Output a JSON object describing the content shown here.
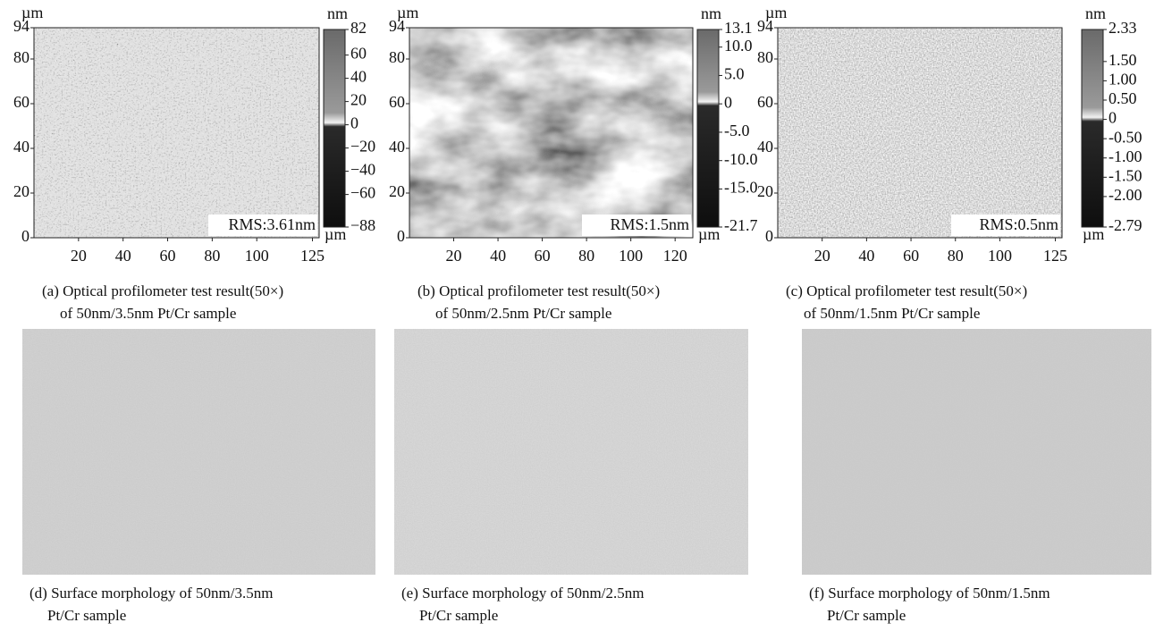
{
  "panels": [
    {
      "y_unit": "µm",
      "yticks": [
        0,
        20,
        40,
        60,
        80,
        94
      ],
      "xticks": [
        20,
        40,
        60,
        80,
        100,
        125
      ],
      "colorbar_unit": "nm",
      "colorbar_bottom_unit": "µm",
      "colorbar_ticks": [
        82,
        60,
        40,
        20,
        0,
        {
          "value": -20,
          "label": "−20"
        },
        {
          "value": -40,
          "label": "−40"
        },
        {
          "value": -60,
          "label": "−60"
        },
        {
          "value": -88,
          "label": "−88"
        }
      ],
      "rms": "RMS:3.61nm",
      "caption": [
        "(a) Optical profilometer test result(50×)",
        "of 50nm/3.5nm Pt/Cr sample"
      ]
    },
    {
      "y_unit": "µm",
      "yticks": [
        0,
        20,
        40,
        60,
        80,
        94
      ],
      "xticks": [
        20,
        40,
        60,
        80,
        100,
        120
      ],
      "colorbar_unit": "nm",
      "colorbar_bottom_unit": "µm",
      "colorbar_ticks": [
        13.1,
        {
          "value": 10,
          "label": "10.0"
        },
        {
          "value": 5,
          "label": "5.0"
        },
        0,
        {
          "value": -5,
          "label": "-5.0"
        },
        {
          "value": -10,
          "label": "-10.0"
        },
        {
          "value": -15,
          "label": "-15.0"
        },
        {
          "value": -21.7,
          "label": "-21.7"
        }
      ],
      "rms": "RMS:1.5nm",
      "caption": [
        "(b) Optical profilometer test result(50×)",
        "of 50nm/2.5nm Pt/Cr sample"
      ]
    },
    {
      "y_unit": "µm",
      "yticks": [
        0,
        20,
        40,
        60,
        80,
        94
      ],
      "xticks": [
        20,
        40,
        60,
        80,
        100,
        125
      ],
      "colorbar_unit": "nm",
      "colorbar_bottom_unit": "µm",
      "colorbar_ticks": [
        2.33,
        {
          "value": 1.5,
          "label": "1.50"
        },
        {
          "value": 1,
          "label": "1.00"
        },
        {
          "value": 0.5,
          "label": "0.50"
        },
        0,
        {
          "value": -0.5,
          "label": "-0.50"
        },
        {
          "value": -1,
          "label": "-1.00"
        },
        {
          "value": -1.5,
          "label": "-1.50"
        },
        {
          "value": -2,
          "label": "-2.00"
        },
        {
          "value": -2.79,
          "label": "-2.79"
        }
      ],
      "rms": "RMS:0.5nm",
      "caption": [
        "(c) Optical profilometer test result(50×)",
        "of 50nm/1.5nm Pt/Cr sample"
      ]
    }
  ],
  "photos": [
    {
      "caption": [
        "(d) Surface morphology of 50nm/3.5nm",
        "Pt/Cr sample"
      ]
    },
    {
      "caption": [
        "(e) Surface morphology of 50nm/2.5nm",
        "Pt/Cr sample"
      ]
    },
    {
      "caption": [
        "(f) Surface morphology of 50nm/1.5nm",
        "Pt/Cr sample"
      ]
    }
  ]
}
